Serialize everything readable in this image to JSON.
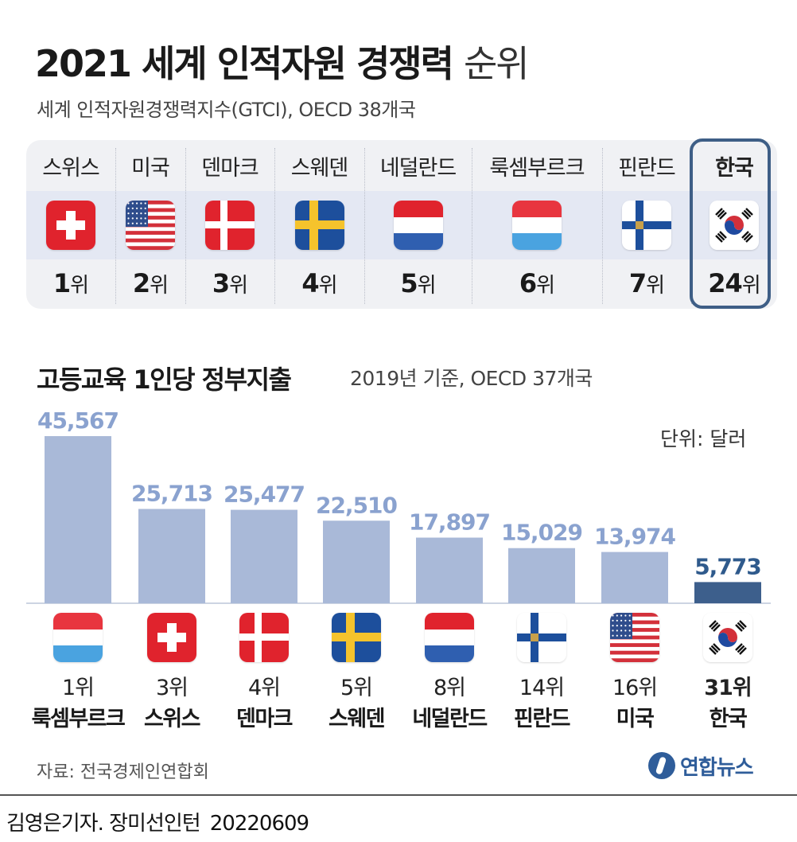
{
  "header": {
    "title_main": "2021 세계 인적자원 경쟁력",
    "title_light": "순위",
    "subtitle": "세계 인적자원경쟁력지수(GTCI), OECD 38개국"
  },
  "ranking": [
    {
      "country": "스위스",
      "flag": "switzerland-flag",
      "rank": "1",
      "rank_suffix": "위"
    },
    {
      "country": "미국",
      "flag": "usa-flag",
      "rank": "2",
      "rank_suffix": "위"
    },
    {
      "country": "덴마크",
      "flag": "denmark-flag",
      "rank": "3",
      "rank_suffix": "위"
    },
    {
      "country": "스웨덴",
      "flag": "sweden-flag",
      "rank": "4",
      "rank_suffix": "위"
    },
    {
      "country": "네덜란드",
      "flag": "netherlands-flag",
      "rank": "5",
      "rank_suffix": "위"
    },
    {
      "country": "룩셈부르크",
      "flag": "luxembourg-flag",
      "rank": "6",
      "rank_suffix": "위"
    },
    {
      "country": "핀란드",
      "flag": "finland-flag",
      "rank": "7",
      "rank_suffix": "위"
    },
    {
      "country": "한국",
      "flag": "korea-flag",
      "rank": "24",
      "rank_suffix": "위"
    }
  ],
  "spending": {
    "title": "고등교육 1인당 정부지출",
    "subtitle": "2019년 기준, OECD 37개국",
    "unit": "단위: 달러"
  },
  "chart_data": {
    "type": "bar",
    "title": "고등교육 1인당 정부지출",
    "subtitle": "2019년 기준, OECD 37개국",
    "unit": "단위: 달러",
    "categories": [
      "룩셈부르크",
      "스위스",
      "덴마크",
      "스웨덴",
      "네덜란드",
      "핀란드",
      "미국",
      "한국"
    ],
    "ranks": [
      "1위",
      "3위",
      "4위",
      "5위",
      "8위",
      "14위",
      "16위",
      "31위"
    ],
    "flags": [
      "luxembourg-flag",
      "switzerland-flag",
      "denmark-flag",
      "sweden-flag",
      "netherlands-flag",
      "finland-flag",
      "usa-flag",
      "korea-flag"
    ],
    "values": [
      45567,
      25713,
      25477,
      22510,
      17897,
      15029,
      13974,
      5773
    ],
    "value_labels": [
      "45,567",
      "25,713",
      "25,477",
      "22,510",
      "17,897",
      "15,029",
      "13,974",
      "5,773"
    ],
    "ylim": [
      0,
      45567
    ],
    "highlight": "한국",
    "colors": {
      "bar": "#a9b9d8",
      "label": "#8aa2cf",
      "highlight_bar": "#3d5f8c",
      "highlight_label": "#2f5a8c"
    },
    "grid": false
  },
  "footer": {
    "source": "자료: 전국경제인연합회",
    "logo_text": "연합뉴스",
    "credit": "김영은기자. 장미선인턴",
    "date": "20220609"
  }
}
